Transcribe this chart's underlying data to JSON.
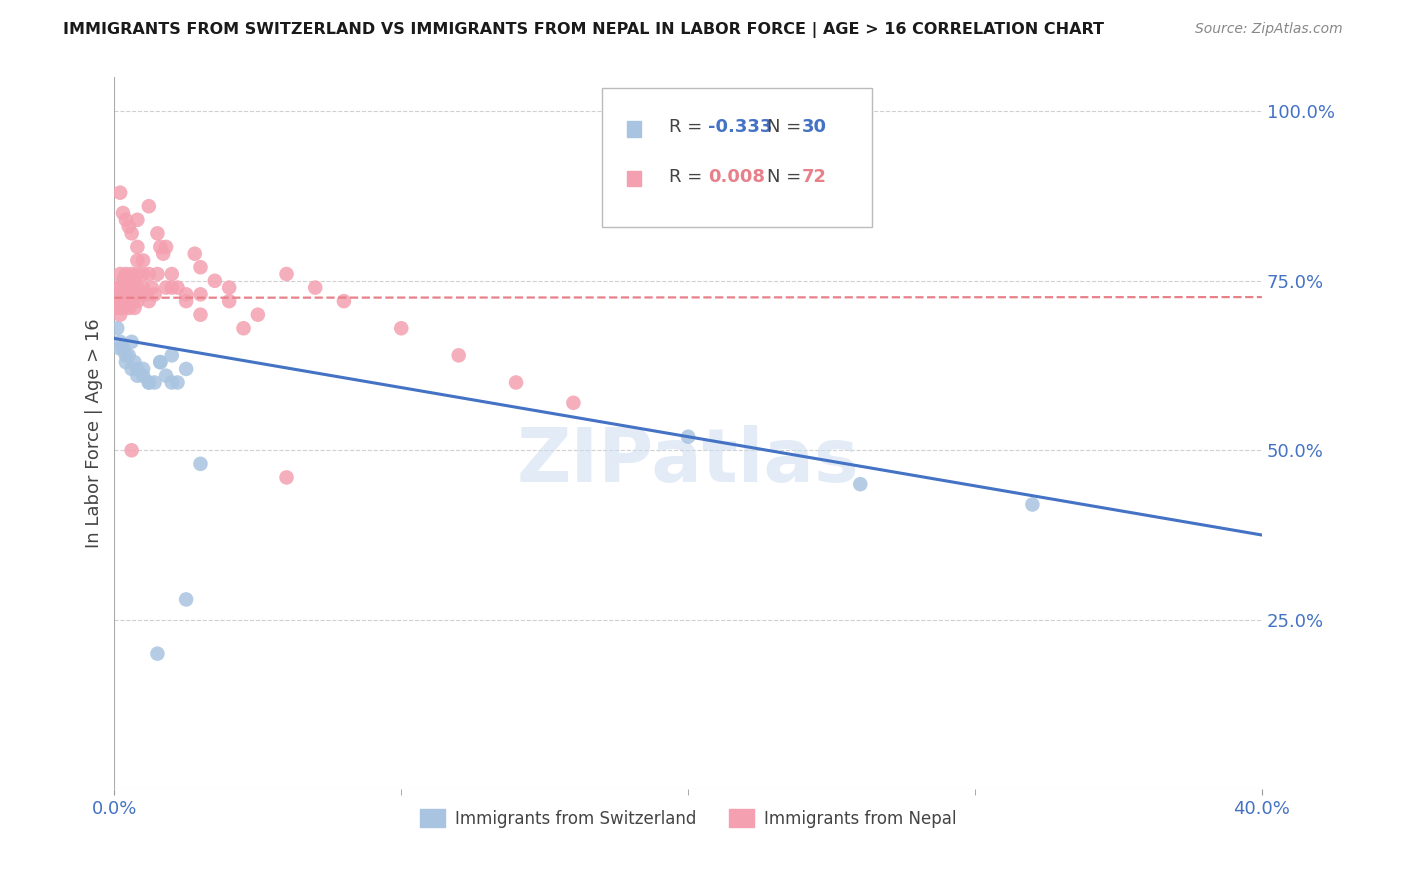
{
  "title": "IMMIGRANTS FROM SWITZERLAND VS IMMIGRANTS FROM NEPAL IN LABOR FORCE | AGE > 16 CORRELATION CHART",
  "source": "Source: ZipAtlas.com",
  "ylabel": "In Labor Force | Age > 16",
  "xlim": [
    0.0,
    0.4
  ],
  "ylim": [
    0.0,
    1.05
  ],
  "yticks": [
    0.0,
    0.25,
    0.5,
    0.75,
    1.0
  ],
  "ytick_labels": [
    "",
    "25.0%",
    "50.0%",
    "75.0%",
    "100.0%"
  ],
  "r_blue": "-0.333",
  "n_blue": "30",
  "r_pink": "0.008",
  "n_pink": "72",
  "legend_blue_label": "Immigrants from Switzerland",
  "legend_pink_label": "Immigrants from Nepal",
  "title_color": "#1a1a1a",
  "axis_tick_color": "#4472c4",
  "watermark": "ZIPatlas",
  "blue_scatter_x": [
    0.001,
    0.002,
    0.003,
    0.004,
    0.005,
    0.006,
    0.007,
    0.008,
    0.01,
    0.012,
    0.014,
    0.016,
    0.018,
    0.02,
    0.022,
    0.002,
    0.004,
    0.006,
    0.008,
    0.01,
    0.012,
    0.016,
    0.02,
    0.025,
    0.03,
    0.2,
    0.26,
    0.32,
    0.025,
    0.015
  ],
  "blue_scatter_y": [
    0.68,
    0.66,
    0.65,
    0.63,
    0.64,
    0.66,
    0.63,
    0.62,
    0.61,
    0.6,
    0.6,
    0.63,
    0.61,
    0.64,
    0.6,
    0.65,
    0.64,
    0.62,
    0.61,
    0.62,
    0.6,
    0.63,
    0.6,
    0.62,
    0.48,
    0.52,
    0.45,
    0.42,
    0.28,
    0.2
  ],
  "pink_scatter_x": [
    0.001,
    0.001,
    0.001,
    0.002,
    0.002,
    0.002,
    0.002,
    0.003,
    0.003,
    0.003,
    0.004,
    0.004,
    0.004,
    0.005,
    0.005,
    0.005,
    0.006,
    0.006,
    0.006,
    0.007,
    0.007,
    0.007,
    0.008,
    0.008,
    0.008,
    0.009,
    0.01,
    0.01,
    0.011,
    0.012,
    0.013,
    0.014,
    0.015,
    0.016,
    0.017,
    0.018,
    0.02,
    0.022,
    0.025,
    0.028,
    0.03,
    0.035,
    0.04,
    0.05,
    0.06,
    0.07,
    0.08,
    0.1,
    0.12,
    0.14,
    0.16,
    0.012,
    0.008,
    0.005,
    0.003,
    0.002,
    0.004,
    0.006,
    0.008,
    0.01,
    0.015,
    0.02,
    0.03,
    0.04,
    0.006,
    0.008,
    0.012,
    0.018,
    0.025,
    0.03,
    0.045,
    0.06
  ],
  "pink_scatter_y": [
    0.74,
    0.72,
    0.71,
    0.76,
    0.74,
    0.72,
    0.7,
    0.75,
    0.73,
    0.71,
    0.76,
    0.74,
    0.72,
    0.75,
    0.73,
    0.71,
    0.76,
    0.74,
    0.72,
    0.75,
    0.73,
    0.71,
    0.76,
    0.74,
    0.72,
    0.73,
    0.76,
    0.74,
    0.73,
    0.72,
    0.74,
    0.73,
    0.82,
    0.8,
    0.79,
    0.8,
    0.76,
    0.74,
    0.73,
    0.79,
    0.77,
    0.75,
    0.74,
    0.7,
    0.76,
    0.74,
    0.72,
    0.68,
    0.64,
    0.6,
    0.57,
    0.86,
    0.84,
    0.83,
    0.85,
    0.88,
    0.84,
    0.82,
    0.8,
    0.78,
    0.76,
    0.74,
    0.73,
    0.72,
    0.5,
    0.78,
    0.76,
    0.74,
    0.72,
    0.7,
    0.68,
    0.46
  ],
  "blue_line_x": [
    0.0,
    0.4
  ],
  "blue_line_y": [
    0.665,
    0.375
  ],
  "pink_line_x": [
    0.0,
    0.4
  ],
  "pink_line_y": [
    0.725,
    0.726
  ],
  "blue_color": "#a8c4e0",
  "pink_color": "#f4a0b0",
  "blue_line_color": "#4472c4",
  "pink_line_color": "#e8808a",
  "background_color": "#ffffff",
  "grid_color": "#d0d0d0"
}
